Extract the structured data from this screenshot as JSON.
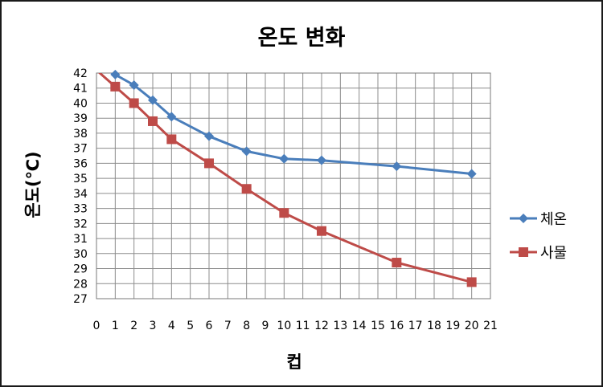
{
  "chart_data": {
    "type": "line",
    "title": "온도 변화",
    "xlabel": "컵",
    "ylabel": "온도(℃)",
    "xlim": [
      0,
      21
    ],
    "ylim": [
      27,
      42
    ],
    "xticks": [
      0,
      1,
      2,
      3,
      4,
      5,
      6,
      7,
      8,
      9,
      10,
      11,
      12,
      13,
      14,
      15,
      16,
      17,
      18,
      19,
      20,
      21
    ],
    "yticks": [
      27,
      28,
      29,
      30,
      31,
      32,
      33,
      34,
      35,
      36,
      37,
      38,
      39,
      40,
      41,
      42
    ],
    "grid": true,
    "legend_position": "right",
    "series": [
      {
        "name": "체온",
        "color": "#4a7ebb",
        "marker": "diamond",
        "x": [
          1,
          2,
          3,
          4,
          6,
          8,
          10,
          12,
          16,
          20
        ],
        "y": [
          41.9,
          41.2,
          40.2,
          39.1,
          37.8,
          36.8,
          36.3,
          36.2,
          35.8,
          35.3
        ]
      },
      {
        "name": "사물",
        "color": "#be4b48",
        "marker": "square",
        "x": [
          1,
          2,
          3,
          4,
          6,
          8,
          10,
          12,
          16,
          20
        ],
        "y": [
          41.1,
          40.0,
          38.8,
          37.6,
          36.0,
          34.3,
          32.7,
          31.5,
          29.4,
          28.1
        ]
      }
    ]
  }
}
